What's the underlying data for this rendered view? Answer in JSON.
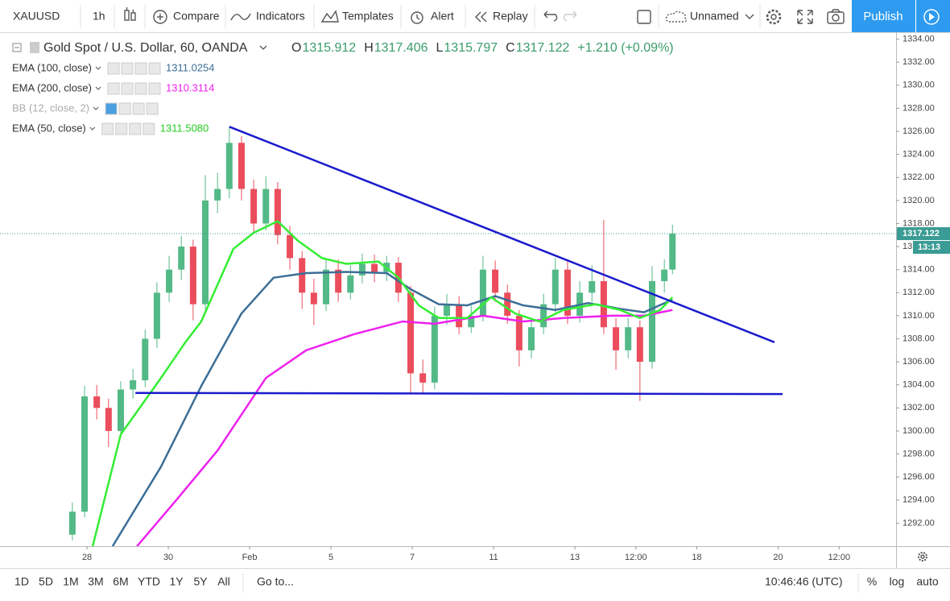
{
  "toolbar": {
    "symbol": "XAUUSD",
    "interval": "1h",
    "compare": "Compare",
    "indicators": "Indicators",
    "templates": "Templates",
    "alert": "Alert",
    "replay": "Replay",
    "layout": "Unnamed",
    "publish": "Publish"
  },
  "header": {
    "instrument": "Gold Spot / U.S. Dollar, 60, OANDA",
    "ohlc": [
      {
        "label": "O",
        "value": "1315.912"
      },
      {
        "label": "H",
        "value": "1317.406"
      },
      {
        "label": "L",
        "value": "1315.797"
      },
      {
        "label": "C",
        "value": "1317.122"
      }
    ],
    "change": "+1.210 (+0.09%)"
  },
  "bottom_bar": {
    "ranges": [
      "1D",
      "5D",
      "1M",
      "3M",
      "6M",
      "YTD",
      "1Y",
      "5Y",
      "All"
    ],
    "goto": "Go to...",
    "clock": "10:46:46 (UTC)",
    "percent": "%",
    "log": "log",
    "auto": "auto"
  },
  "chart_data": {
    "type": "candlestick",
    "x": [
      -0.36,
      -0.06,
      0.24,
      0.53,
      0.83,
      1.13,
      1.43,
      1.72,
      2.02,
      2.32,
      2.61,
      2.91,
      3.21,
      3.5,
      3.8,
      4.1,
      4.4,
      4.69,
      4.99,
      5.29,
      5.58,
      5.88,
      6.18,
      6.48,
      6.77,
      7.07,
      7.37,
      7.66,
      7.96,
      8.26,
      8.55,
      8.85,
      9.15,
      9.45,
      9.74,
      10.04,
      10.34,
      10.63,
      10.93,
      11.23,
      11.52,
      11.82,
      12.12,
      12.42,
      12.71,
      13.01,
      13.31,
      13.6,
      13.9,
      14.2,
      14.4
    ],
    "open": [
      1291,
      1293,
      1303,
      1302,
      1300,
      1303.6,
      1304.4,
      1308,
      1312,
      1314,
      1316,
      1311,
      1320,
      1321,
      1325,
      1321,
      1318,
      1321,
      1317,
      1315,
      1312,
      1311,
      1314,
      1312,
      1313.5,
      1314.5,
      1313.8,
      1314.6,
      1312,
      1305,
      1304.2,
      1310,
      1311,
      1309,
      1310,
      1314,
      1312,
      1310,
      1307,
      1309,
      1311,
      1314,
      1310,
      1312,
      1313,
      1309,
      1307,
      1309,
      1306,
      1313,
      1314
    ],
    "high": [
      1293.8,
      1303.9,
      1304,
      1302.8,
      1304.3,
      1305.4,
      1308.8,
      1312.9,
      1315.2,
      1316.9,
      1316.6,
      1322.2,
      1322.4,
      1326.3,
      1325.6,
      1321.8,
      1322.1,
      1321.6,
      1317.8,
      1315.6,
      1313.2,
      1315,
      1314.9,
      1314.4,
      1315.4,
      1315.3,
      1315.2,
      1315.1,
      1312.6,
      1306.2,
      1310.8,
      1311.9,
      1311.7,
      1310.9,
      1315.2,
      1314.8,
      1312.7,
      1310.5,
      1309.8,
      1311.9,
      1315,
      1314.7,
      1313,
      1314.4,
      1318.3,
      1309.8,
      1309.8,
      1309.6,
      1314.3,
      1314.9,
      1317.9
    ],
    "low": [
      1290.5,
      1292.5,
      1301,
      1298.6,
      1299.4,
      1302.8,
      1303.8,
      1307.2,
      1311.2,
      1313.1,
      1309.6,
      1310.5,
      1318.9,
      1320.2,
      1320,
      1317.2,
      1317.4,
      1316.2,
      1314,
      1310.6,
      1309.2,
      1310.4,
      1311.2,
      1311.4,
      1312.8,
      1312.9,
      1313,
      1311.2,
      1303.2,
      1303.3,
      1303.6,
      1309.2,
      1308.4,
      1308.5,
      1309.5,
      1311.2,
      1309.3,
      1305.6,
      1306.3,
      1308.4,
      1310.3,
      1309.3,
      1309.4,
      1311.2,
      1308.4,
      1305.3,
      1306.3,
      1302.6,
      1305.4,
      1312,
      1313.6
    ],
    "close": [
      1293,
      1303,
      1302,
      1300,
      1303.6,
      1304.4,
      1308,
      1312,
      1314,
      1316,
      1311,
      1320,
      1321,
      1325,
      1321,
      1318,
      1321,
      1317,
      1315,
      1312,
      1311,
      1314,
      1312,
      1313.5,
      1314.5,
      1313.8,
      1314.6,
      1312,
      1305,
      1304.2,
      1310,
      1311,
      1309,
      1310,
      1314,
      1312,
      1310,
      1307,
      1309,
      1311,
      1314,
      1310,
      1312,
      1313,
      1309,
      1307,
      1309,
      1306,
      1313,
      1314,
      1317.122
    ],
    "up_color": "#53b987",
    "down_color": "#eb4d5c",
    "series": [
      {
        "name": "EMA (100, close)",
        "color": "#3c6e96",
        "last_value": "1311.0254",
        "x": [
          0.63,
          1.82,
          2.81,
          3.8,
          4.59,
          5.39,
          6.38,
          7.37,
          7.96,
          8.65,
          9.35,
          10.04,
          10.73,
          11.52,
          12.32,
          13.11,
          13.7,
          14.4
        ],
        "values": [
          1290,
          1296.9,
          1303.9,
          1310.2,
          1313.3,
          1313.7,
          1313.8,
          1313.7,
          1312.3,
          1311,
          1310.9,
          1311.7,
          1310.9,
          1310.5,
          1311.1,
          1310.6,
          1310.3,
          1311.4
        ]
      },
      {
        "name": "EMA (200, close)",
        "color": "#ee22ee",
        "last_value": "1310.3114",
        "x": [
          1.23,
          2.22,
          3.21,
          4.4,
          5.39,
          6.57,
          7.76,
          8.55,
          9.74,
          10.73,
          11.72,
          12.91,
          13.7,
          14.4
        ],
        "values": [
          1290,
          1294.1,
          1298.3,
          1304.6,
          1307,
          1308.4,
          1309.5,
          1309.3,
          1310,
          1309.5,
          1309.8,
          1310,
          1310,
          1310.5
        ]
      },
      {
        "name": "EMA (50, close)",
        "color": "#33ee33",
        "last_value": "1311.5080",
        "x": [
          0.14,
          0.83,
          1.82,
          2.42,
          2.81,
          3.6,
          4.1,
          4.69,
          5.19,
          5.78,
          6.38,
          7.17,
          7.66,
          8.16,
          8.65,
          9.35,
          9.94,
          10.53,
          11.13,
          11.72,
          12.51,
          13.11,
          13.6,
          14.1,
          14.4
        ],
        "values": [
          1290,
          1299.7,
          1304.6,
          1307.7,
          1309.5,
          1315.8,
          1317.2,
          1318.2,
          1316.5,
          1315,
          1314.5,
          1314.7,
          1313.3,
          1310.9,
          1309.8,
          1309.8,
          1311.6,
          1310.2,
          1309.5,
          1310.5,
          1311,
          1310.5,
          1309.8,
          1310.5,
          1311.6
        ]
      }
    ],
    "hidden_indicator": "BB (12, close, 2)",
    "trendlines": [
      {
        "color": "#1a1acc",
        "x": [
          3.5,
          16.91
        ],
        "values": [
          1326.4,
          1307.7
        ]
      },
      {
        "color": "#1a1acc",
        "x": [
          1.19,
          17.11
        ],
        "values": [
          1303.3,
          1303.2
        ]
      }
    ],
    "last_price": 1317.122,
    "countdown": "13:13",
    "price_color": "#3a9c94",
    "xlim": [
      -2.14,
      19.9
    ],
    "xticks": [
      {
        "value": 0,
        "label": "28"
      },
      {
        "value": 2,
        "label": "30"
      },
      {
        "value": 4,
        "label": "Feb"
      },
      {
        "value": 6,
        "label": "5"
      },
      {
        "value": 8,
        "label": "7"
      },
      {
        "value": 10,
        "label": "11"
      },
      {
        "value": 12,
        "label": "13"
      },
      {
        "value": 13.5,
        "label": "12:00"
      },
      {
        "value": 15,
        "label": "18"
      },
      {
        "value": 17,
        "label": "20"
      },
      {
        "value": 18.5,
        "label": "12:00"
      }
    ],
    "ylim": [
      1290,
      1334.6
    ],
    "yticks": [
      {
        "value": 1292,
        "label": "1292.00"
      },
      {
        "value": 1294,
        "label": "1294.00"
      },
      {
        "value": 1296,
        "label": "1296.00"
      },
      {
        "value": 1298,
        "label": "1298.00"
      },
      {
        "value": 1300,
        "label": "1300.00"
      },
      {
        "value": 1302,
        "label": "1302.00"
      },
      {
        "value": 1304,
        "label": "1304.00"
      },
      {
        "value": 1306,
        "label": "1306.00"
      },
      {
        "value": 1308,
        "label": "1308.00"
      },
      {
        "value": 1310,
        "label": "1310.00"
      },
      {
        "value": 1312,
        "label": "1312.00"
      },
      {
        "value": 1314,
        "label": "1314.00"
      },
      {
        "value": 1316,
        "label": "1316.00"
      },
      {
        "value": 1318,
        "label": "1318.00"
      },
      {
        "value": 1320,
        "label": "1320.00"
      },
      {
        "value": 1322,
        "label": "1322.00"
      },
      {
        "value": 1324,
        "label": "1324.00"
      },
      {
        "value": 1326,
        "label": "1326.00"
      },
      {
        "value": 1328,
        "label": "1328.00"
      },
      {
        "value": 1330,
        "label": "1330.00"
      },
      {
        "value": 1332,
        "label": "1332.00"
      },
      {
        "value": 1334,
        "label": "1334.00"
      }
    ],
    "grid": false
  }
}
